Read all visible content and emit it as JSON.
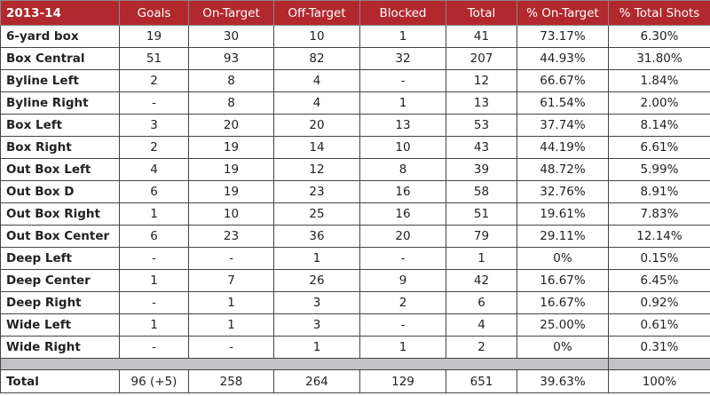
{
  "table": {
    "header": [
      "2013-14",
      "Goals",
      "On-Target",
      "Off-Target",
      "Blocked",
      "Total",
      "% On-Target",
      "% Total Shots"
    ],
    "rows": [
      [
        "6-yard box",
        "19",
        "30",
        "10",
        "1",
        "41",
        "73.17%",
        "6.30%"
      ],
      [
        "Box Central",
        "51",
        "93",
        "82",
        "32",
        "207",
        "44.93%",
        "31.80%"
      ],
      [
        "Byline Left",
        "2",
        "8",
        "4",
        "-",
        "12",
        "66.67%",
        "1.84%"
      ],
      [
        "Byline Right",
        "-",
        "8",
        "4",
        "1",
        "13",
        "61.54%",
        "2.00%"
      ],
      [
        "Box Left",
        "3",
        "20",
        "20",
        "13",
        "53",
        "37.74%",
        "8.14%"
      ],
      [
        "Box Right",
        "2",
        "19",
        "14",
        "10",
        "43",
        "44.19%",
        "6.61%"
      ],
      [
        "Out Box Left",
        "4",
        "19",
        "12",
        "8",
        "39",
        "48.72%",
        "5.99%"
      ],
      [
        "Out Box D",
        "6",
        "19",
        "23",
        "16",
        "58",
        "32.76%",
        "8.91%"
      ],
      [
        "Out Box Right",
        "1",
        "10",
        "25",
        "16",
        "51",
        "19.61%",
        "7.83%"
      ],
      [
        "Out Box Center",
        "6",
        "23",
        "36",
        "20",
        "79",
        "29.11%",
        "12.14%"
      ],
      [
        "Deep Left",
        "-",
        "-",
        "1",
        "-",
        "1",
        "0%",
        "0.15%"
      ],
      [
        "Deep Center",
        "1",
        "7",
        "26",
        "9",
        "42",
        "16.67%",
        "6.45%"
      ],
      [
        "Deep Right",
        "-",
        "1",
        "3",
        "2",
        "6",
        "16.67%",
        "0.92%"
      ],
      [
        "Wide Left",
        "1",
        "1",
        "3",
        "-",
        "4",
        "25.00%",
        "0.61%"
      ],
      [
        "Wide Right",
        "-",
        "-",
        "1",
        "1",
        "2",
        "0%",
        "0.31%"
      ]
    ],
    "total": [
      "Total",
      "96 (+5)",
      "258",
      "264",
      "129",
      "651",
      "39.63%",
      "100%"
    ]
  }
}
